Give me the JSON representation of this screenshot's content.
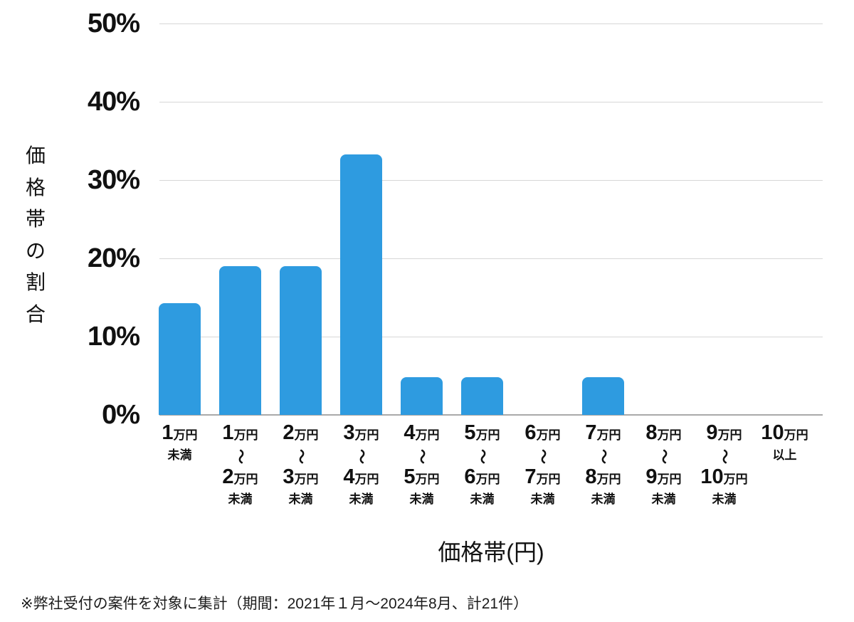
{
  "chart_data": {
    "type": "bar",
    "title": "",
    "xlabel": "価格帯(円)",
    "ylabel": "価格帯の割合",
    "note": "※弊社受付の案件を対象に集計（期間：2021年１月～2024年8月、計21件）",
    "bar_color": "#2e9be0",
    "grid": true,
    "ylim": [
      0,
      50
    ],
    "yticks": [
      {
        "label": "50%",
        "value": 50
      },
      {
        "label": "40%",
        "value": 40
      },
      {
        "label": "30%",
        "value": 30
      },
      {
        "label": "20%",
        "value": 20
      },
      {
        "label": "10%",
        "value": 10
      },
      {
        "label": "0%",
        "value": 0
      }
    ],
    "categories": [
      {
        "label": "1万円未満",
        "from": "1",
        "from_unit": "万円",
        "suffix": "未満"
      },
      {
        "label": "1万円〜2万円未満",
        "from": "1",
        "from_unit": "万円",
        "tilde": "〜",
        "to": "2",
        "to_unit": "万円",
        "suffix": "未満"
      },
      {
        "label": "2万円〜3万円未満",
        "from": "2",
        "from_unit": "万円",
        "tilde": "〜",
        "to": "3",
        "to_unit": "万円",
        "suffix": "未満"
      },
      {
        "label": "3万円〜4万円未満",
        "from": "3",
        "from_unit": "万円",
        "tilde": "〜",
        "to": "4",
        "to_unit": "万円",
        "suffix": "未満"
      },
      {
        "label": "4万円〜5万円未満",
        "from": "4",
        "from_unit": "万円",
        "tilde": "〜",
        "to": "5",
        "to_unit": "万円",
        "suffix": "未満"
      },
      {
        "label": "5万円〜6万円未満",
        "from": "5",
        "from_unit": "万円",
        "tilde": "〜",
        "to": "6",
        "to_unit": "万円",
        "suffix": "未満"
      },
      {
        "label": "6万円〜7万円未満",
        "from": "6",
        "from_unit": "万円",
        "tilde": "〜",
        "to": "7",
        "to_unit": "万円",
        "suffix": "未満"
      },
      {
        "label": "7万円〜8万円未満",
        "from": "7",
        "from_unit": "万円",
        "tilde": "〜",
        "to": "8",
        "to_unit": "万円",
        "suffix": "未満"
      },
      {
        "label": "8万円〜9万円未満",
        "from": "8",
        "from_unit": "万円",
        "tilde": "〜",
        "to": "9",
        "to_unit": "万円",
        "suffix": "未満"
      },
      {
        "label": "9万円〜10万円未満",
        "from": "9",
        "from_unit": "万円",
        "tilde": "〜",
        "to": "10",
        "to_unit": "万円",
        "suffix": "未満"
      },
      {
        "label": "10万円以上",
        "from": "10",
        "from_unit": "万円",
        "suffix": "以上"
      }
    ],
    "values": [
      14.3,
      19,
      19,
      33.3,
      4.8,
      4.8,
      0,
      4.8,
      0,
      0,
      0
    ]
  }
}
